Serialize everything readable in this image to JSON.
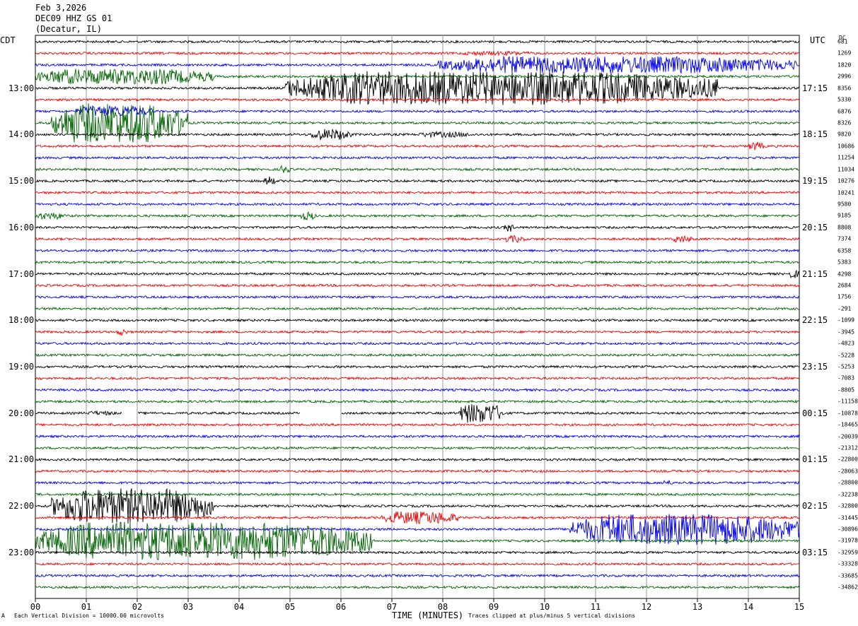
{
  "header": {
    "date": "Feb 3,2026",
    "station": "DEC09 HHZ GS 01",
    "location": "(Decatur, IL)"
  },
  "left_axis_title": "CDT",
  "right_axis_title": "UTC",
  "dc_title": "DC",
  "footer": {
    "scale_note": "Each Vertical Division = 10000.00 microvolts",
    "clip_note": "Traces clipped at plus/minus 5 vertical divisions",
    "corner_mark": "A"
  },
  "chart_data": {
    "type": "seismogram_helicorder",
    "xlabel": "TIME (MINUTES)",
    "x_ticks": [
      "00",
      "01",
      "02",
      "03",
      "04",
      "05",
      "06",
      "07",
      "08",
      "09",
      "10",
      "11",
      "12",
      "13",
      "14",
      "15"
    ],
    "xlim": [
      0,
      15
    ],
    "trace_count": 48,
    "minutes_per_trace": 15,
    "trace_colors": [
      "#000000",
      "#ee0000",
      "#0000ee",
      "#006400"
    ],
    "left_time_labels": [
      "13:00",
      "14:00",
      "15:00",
      "16:00",
      "17:00",
      "18:00",
      "19:00",
      "20:00",
      "21:00",
      "22:00",
      "23:00"
    ],
    "left_label_trace_index": [
      4,
      8,
      12,
      16,
      20,
      24,
      28,
      32,
      36,
      40,
      44
    ],
    "right_time_labels": [
      "17:15",
      "18:15",
      "19:15",
      "20:15",
      "21:15",
      "22:15",
      "23:15",
      "00:15",
      "01:15",
      "02:15",
      "03:15"
    ],
    "dc_offsets": [
      "681",
      "1269",
      "1820",
      "2996",
      "8356",
      "5330",
      "6876",
      "8326",
      "9820",
      "10686",
      "11254",
      "11034",
      "10276",
      "10241",
      "9580",
      "9185",
      "8808",
      "7374",
      "6358",
      "5383",
      "4298",
      "2684",
      "1756",
      "-291",
      "-1099",
      "-3945",
      "-4823",
      "-5228",
      "-5253",
      "-7083",
      "-8805",
      "-11158",
      "-10878",
      "-18465",
      "-20039",
      "-21312",
      "-22800",
      "-28063",
      "-28800",
      "-32238",
      "-32800",
      "-31445",
      "-30896",
      "-31978",
      "-32959",
      "-33328",
      "-33685",
      "-34862"
    ],
    "events": [
      {
        "trace": 1,
        "start_min": 8.3,
        "end_min": 9.9,
        "amp": 3
      },
      {
        "trace": 2,
        "start_min": 7.9,
        "end_min": 15.0,
        "amp": 12
      },
      {
        "trace": 3,
        "start_min": 0.0,
        "end_min": 3.5,
        "amp": 11
      },
      {
        "trace": 4,
        "start_min": 4.9,
        "end_min": 13.4,
        "amp": 24
      },
      {
        "trace": 6,
        "start_min": 0.8,
        "end_min": 2.3,
        "amp": 8
      },
      {
        "trace": 7,
        "start_min": 0.3,
        "end_min": 3.0,
        "amp": 28
      },
      {
        "trace": 8,
        "start_min": 5.4,
        "end_min": 6.2,
        "amp": 8
      },
      {
        "trace": 8,
        "start_min": 7.5,
        "end_min": 8.6,
        "amp": 4
      },
      {
        "trace": 9,
        "start_min": 14.0,
        "end_min": 14.3,
        "amp": 6
      },
      {
        "trace": 11,
        "start_min": 4.8,
        "end_min": 5.0,
        "amp": 6
      },
      {
        "trace": 12,
        "start_min": 4.5,
        "end_min": 4.7,
        "amp": 7
      },
      {
        "trace": 15,
        "start_min": 0.0,
        "end_min": 0.6,
        "amp": 5
      },
      {
        "trace": 15,
        "start_min": 5.2,
        "end_min": 5.5,
        "amp": 6
      },
      {
        "trace": 16,
        "start_min": 9.2,
        "end_min": 9.4,
        "amp": 6
      },
      {
        "trace": 17,
        "start_min": 9.2,
        "end_min": 9.6,
        "amp": 5
      },
      {
        "trace": 17,
        "start_min": 12.5,
        "end_min": 12.9,
        "amp": 5
      },
      {
        "trace": 20,
        "start_min": 14.8,
        "end_min": 15.0,
        "amp": 6
      },
      {
        "trace": 25,
        "start_min": 1.6,
        "end_min": 1.8,
        "amp": 5
      },
      {
        "trace": 32,
        "start_min": 8.3,
        "end_min": 9.2,
        "amp": 14
      },
      {
        "trace": 32,
        "start_min": 1.0,
        "end_min": 1.6,
        "amp": 3
      },
      {
        "trace": 38,
        "start_min": 12.3,
        "end_min": 12.5,
        "amp": 4
      },
      {
        "trace": 40,
        "start_min": 0.3,
        "end_min": 3.5,
        "amp": 25
      },
      {
        "trace": 41,
        "start_min": 6.8,
        "end_min": 8.3,
        "amp": 9
      },
      {
        "trace": 42,
        "start_min": 10.5,
        "end_min": 15.0,
        "amp": 22
      },
      {
        "trace": 43,
        "start_min": 0.0,
        "end_min": 6.6,
        "amp": 27
      }
    ],
    "data_gaps": [
      {
        "trace": 32,
        "start_min": 1.7,
        "end_min": 2.0
      },
      {
        "trace": 32,
        "start_min": 5.2,
        "end_min": 6.0
      }
    ]
  }
}
